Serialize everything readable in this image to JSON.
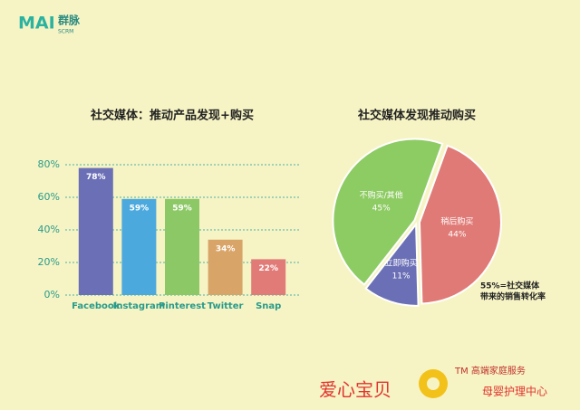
{
  "header": {
    "logo": "MAI",
    "brand": "群脉",
    "sub": "SCRM"
  },
  "chart_data": [
    {
      "type": "bar",
      "title": "社交媒体：推动产品发现+购买",
      "categories": [
        "Facebook",
        "Instagram",
        "Pinterest",
        "Twitter",
        "Snap"
      ],
      "values": [
        78,
        59,
        59,
        34,
        22
      ],
      "value_labels": [
        "78%",
        "59%",
        "59%",
        "34%",
        "22%"
      ],
      "colors": [
        "#6b70b6",
        "#4ba9dd",
        "#8dc866",
        "#d9a468",
        "#e17b78"
      ],
      "ylim": [
        0,
        80
      ],
      "yticks": [
        {
          "value": 0,
          "label": "0%"
        },
        {
          "value": 20,
          "label": "20%"
        },
        {
          "value": 40,
          "label": "40%"
        },
        {
          "value": 60,
          "label": "60%"
        },
        {
          "value": 80,
          "label": "80%"
        }
      ],
      "grid": true
    },
    {
      "type": "pie",
      "title": "社交媒体发现推动购买",
      "categories": [
        "稍后购买",
        "立即购买",
        "不购买/其他"
      ],
      "values": [
        44,
        11,
        45
      ],
      "value_labels": [
        "44%",
        "11%",
        "45%"
      ],
      "colors": [
        "#e07a76",
        "#6b70b6",
        "#8dcb63"
      ],
      "annotation": [
        "55%=社交媒体",
        "带来的销售转化率"
      ]
    }
  ],
  "footer": {
    "left": "爱心宝贝",
    "tm": "TM 高端家庭服务",
    "right": "母婴护理中心"
  }
}
